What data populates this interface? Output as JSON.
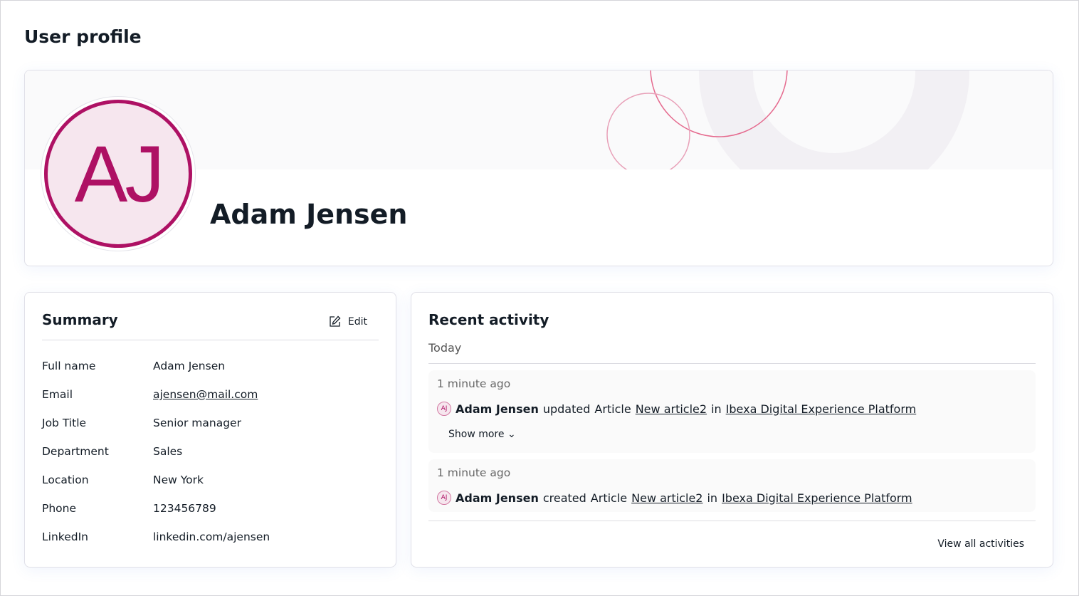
{
  "page_title": "User profile",
  "profile": {
    "initials": "AJ",
    "name": "Adam Jensen",
    "accent": "#ae1164"
  },
  "summary": {
    "title": "Summary",
    "edit_label": "Edit",
    "fields": [
      {
        "label": "Full name",
        "value": "Adam Jensen"
      },
      {
        "label": "Email",
        "value": "ajensen@mail.com",
        "link": true
      },
      {
        "label": "Job Title",
        "value": "Senior manager"
      },
      {
        "label": "Department",
        "value": "Sales"
      },
      {
        "label": "Location",
        "value": "New York"
      },
      {
        "label": "Phone",
        "value": "123456789"
      },
      {
        "label": "LinkedIn",
        "value": "linkedin.com/ajensen"
      }
    ]
  },
  "activity": {
    "title": "Recent activity",
    "group": "Today",
    "items": [
      {
        "time": "1 minute ago",
        "initials": "AJ",
        "user": "Adam Jensen",
        "action": "updated",
        "type": "Article",
        "target": "New article2",
        "in": "in",
        "location": "Ibexa Digital Experience Platform",
        "show_more": "Show more"
      },
      {
        "time": "1 minute ago",
        "initials": "AJ",
        "user": "Adam Jensen",
        "action": "created",
        "type": "Article",
        "target": "New article2",
        "in": "in",
        "location": "Ibexa Digital Experience Platform"
      }
    ],
    "view_all": "View all activities"
  }
}
